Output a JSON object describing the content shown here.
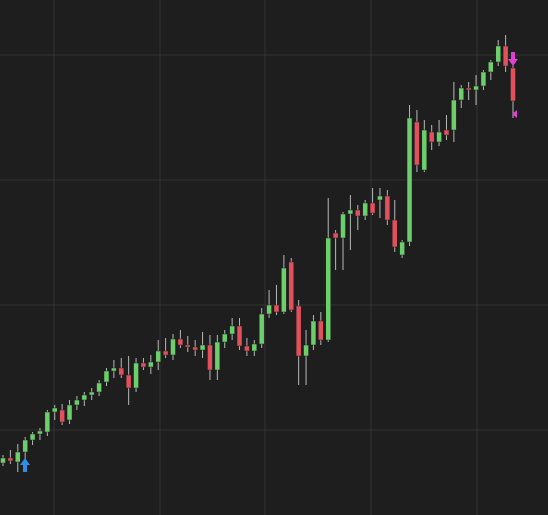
{
  "chart_data": {
    "type": "candlestick",
    "ylim": [
      0,
      515
    ],
    "up_color": "#6ccf6c",
    "down_color": "#e2505c",
    "wick_color": "#b8b8b8",
    "open": [
      52,
      57,
      53,
      63,
      75,
      81,
      83,
      103,
      105,
      95,
      110,
      115,
      120,
      123,
      133,
      144,
      147,
      140,
      127,
      152,
      148,
      153,
      164,
      160,
      176,
      170,
      168,
      165,
      170,
      145,
      173,
      181,
      189,
      169,
      164,
      171,
      201,
      210,
      203,
      253,
      209,
      159,
      170,
      194,
      175,
      282,
      277,
      301,
      305,
      299,
      312,
      315,
      319,
      295,
      260,
      273,
      393,
      345,
      383,
      373,
      385,
      385,
      415,
      427,
      425,
      429,
      443,
      453,
      469,
      447
    ],
    "high": [
      60,
      65,
      71,
      78,
      83,
      87,
      105,
      110,
      111,
      115,
      119,
      123,
      127,
      135,
      147,
      155,
      157,
      159,
      157,
      157,
      160,
      175,
      177,
      181,
      185,
      179,
      175,
      183,
      180,
      180,
      185,
      197,
      197,
      177,
      175,
      207,
      225,
      230,
      260,
      257,
      215,
      185,
      200,
      203,
      317,
      285,
      303,
      320,
      310,
      315,
      327,
      327,
      325,
      315,
      275,
      410,
      405,
      395,
      390,
      395,
      400,
      433,
      430,
      433,
      440,
      445,
      455,
      475,
      480,
      457
    ],
    "low": [
      49,
      51,
      43,
      55,
      70,
      75,
      79,
      95,
      90,
      91,
      105,
      109,
      115,
      119,
      129,
      137,
      137,
      110,
      123,
      145,
      141,
      145,
      157,
      155,
      167,
      163,
      159,
      157,
      135,
      135,
      167,
      175,
      165,
      159,
      159,
      167,
      197,
      200,
      201,
      203,
      130,
      130,
      165,
      170,
      173,
      245,
      245,
      265,
      285,
      295,
      300,
      297,
      290,
      263,
      257,
      269,
      343,
      343,
      365,
      369,
      375,
      373,
      407,
      415,
      410,
      425,
      435,
      449,
      443,
      397
    ],
    "close": [
      57,
      54,
      63,
      75,
      81,
      84,
      103,
      107,
      93,
      110,
      115,
      120,
      123,
      132,
      144,
      147,
      140,
      127,
      152,
      148,
      153,
      164,
      160,
      176,
      170,
      168,
      165,
      170,
      145,
      173,
      181,
      189,
      169,
      164,
      171,
      201,
      210,
      203,
      247,
      205,
      159,
      170,
      194,
      175,
      277,
      277,
      301,
      305,
      299,
      312,
      302,
      319,
      295,
      268,
      273,
      397,
      350,
      385,
      373,
      383,
      380,
      415,
      427,
      425,
      429,
      443,
      453,
      469,
      449,
      414
    ]
  }
}
